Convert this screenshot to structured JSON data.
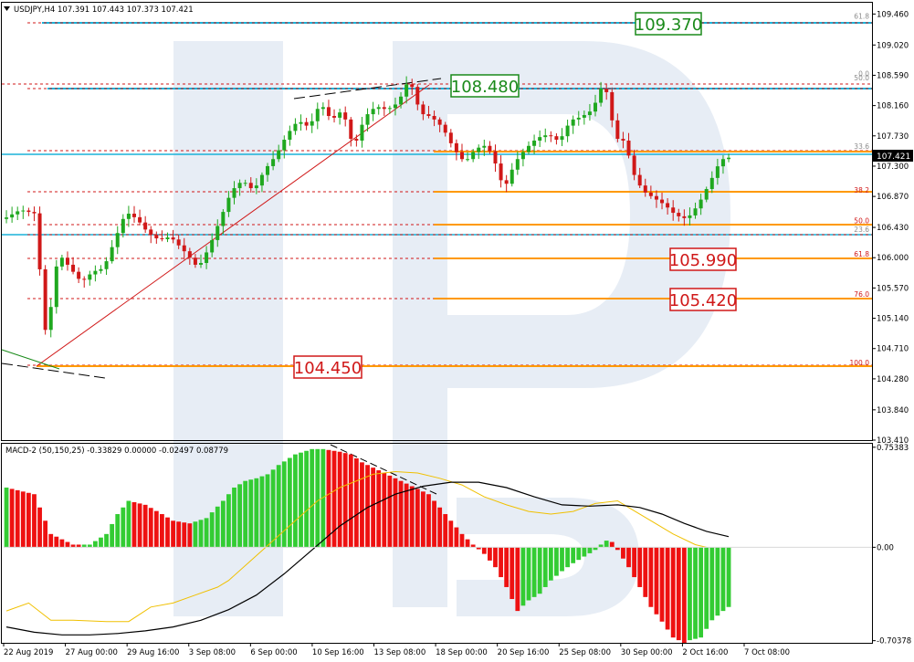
{
  "colors": {
    "frame": "#000000",
    "bull_candle": "#1fa81f",
    "bear_candle": "#d01818",
    "fib_dashed": "#d01818",
    "fib_solid": "#ff9900",
    "level_line": "#1ab2d8",
    "green_box": "#1a8a1a",
    "red_box": "#d01818",
    "trend_red": "#d01818",
    "trend_dash": "#000000",
    "macd_pos": "#33cc33",
    "macd_neg": "#ee1111",
    "signal_line": "#f0c000",
    "main_line": "#000000",
    "watermark": "#e7edf5"
  },
  "chart_data": [
    {
      "type": "candlestick",
      "title": "USDJPY,H4 107.391 107.443 107.373 107.421",
      "y_ticks": [
        "109.460",
        "109.020",
        "108.590",
        "108.160",
        "107.730",
        "107.300",
        "106.870",
        "106.430",
        "106.000",
        "105.570",
        "105.140",
        "104.710",
        "104.280",
        "103.840",
        "103.410"
      ],
      "ylim": [
        103.41,
        109.62
      ],
      "current_price": "107.421",
      "x_ticks": [
        "22 Aug 2019",
        "27 Aug 00:00",
        "29 Aug 16:00",
        "3 Sep 08:00",
        "6 Sep 00:00",
        "10 Sep 16:00",
        "13 Sep 08:00",
        "18 Sep 00:00",
        "20 Sep 16:00",
        "25 Sep 08:00",
        "30 Sep 00:00",
        "2 Oct 16:00",
        "7 Oct 08:00"
      ],
      "bar_count": 108,
      "highlighted_levels": [
        "109.370",
        "108.480",
        "105.990",
        "105.420",
        "104.450"
      ],
      "fib_levels_upper": [
        {
          "label": "61.8",
          "price": 109.37
        },
        {
          "label": "0.0",
          "price": 108.55
        },
        {
          "label": "50.0",
          "price": 108.49
        },
        {
          "label": "33.6",
          "price": 107.52
        },
        {
          "label": "23.6",
          "price": 106.34
        }
      ],
      "fib_levels_lower": [
        {
          "label": "38.2",
          "price": 106.9
        },
        {
          "label": "50.0",
          "price": 106.46
        },
        {
          "label": "61.8",
          "price": 105.99
        },
        {
          "label": "76.0",
          "price": 105.42
        },
        {
          "label": "100.0",
          "price": 104.45
        }
      ],
      "anchors": {
        "low": 104.45,
        "high": 108.55
      },
      "path_points": [
        [
          0,
          106.55
        ],
        [
          3,
          106.68
        ],
        [
          6,
          106.62
        ],
        [
          7,
          105.05
        ],
        [
          8,
          104.9
        ],
        [
          9,
          105.7
        ],
        [
          10,
          106.05
        ],
        [
          12,
          105.85
        ],
        [
          14,
          105.65
        ],
        [
          16,
          105.8
        ],
        [
          18,
          105.85
        ],
        [
          20,
          106.25
        ],
        [
          22,
          106.65
        ],
        [
          24,
          106.55
        ],
        [
          26,
          106.35
        ],
        [
          28,
          106.25
        ],
        [
          30,
          106.3
        ],
        [
          33,
          106.05
        ],
        [
          35,
          105.85
        ],
        [
          37,
          106.15
        ],
        [
          39,
          106.55
        ],
        [
          41,
          106.95
        ],
        [
          43,
          107.1
        ],
        [
          45,
          106.95
        ],
        [
          47,
          107.25
        ],
        [
          49,
          107.45
        ],
        [
          51,
          107.75
        ],
        [
          53,
          107.95
        ],
        [
          55,
          107.85
        ],
        [
          57,
          108.2
        ],
        [
          59,
          107.95
        ],
        [
          61,
          108.1
        ],
        [
          63,
          107.55
        ],
        [
          65,
          108.0
        ],
        [
          67,
          108.15
        ],
        [
          69,
          108.1
        ],
        [
          71,
          108.2
        ],
        [
          73,
          108.55
        ],
        [
          75,
          108.05
        ],
        [
          77,
          108.0
        ],
        [
          79,
          107.85
        ],
        [
          81,
          107.55
        ],
        [
          83,
          107.35
        ],
        [
          85,
          107.55
        ],
        [
          87,
          107.6
        ],
        [
          89,
          107.25
        ],
        [
          90,
          106.95
        ],
        [
          92,
          107.35
        ],
        [
          94,
          107.55
        ],
        [
          96,
          107.7
        ],
        [
          98,
          107.75
        ],
        [
          100,
          107.65
        ],
        [
          102,
          107.95
        ],
        [
          104,
          108.0
        ],
        [
          106,
          108.1
        ],
        [
          108,
          108.5
        ],
        [
          109,
          108.2
        ],
        [
          110,
          107.7
        ],
        [
          112,
          107.65
        ],
        [
          113,
          107.25
        ],
        [
          115,
          106.95
        ],
        [
          117,
          106.85
        ],
        [
          119,
          106.75
        ],
        [
          121,
          106.6
        ],
        [
          123,
          106.55
        ],
        [
          125,
          106.75
        ],
        [
          127,
          107.05
        ],
        [
          129,
          107.38
        ],
        [
          130,
          107.42
        ]
      ]
    },
    {
      "type": "histogram",
      "title": "MACD-2 (50,150,25) -0.33829 0.00000 -0.02497 0.08779",
      "y_ticks": [
        "0.75383",
        "0.00",
        "-0.70378"
      ],
      "ylim": [
        -0.72,
        0.78
      ],
      "series": [
        {
          "name": "histogram",
          "points": [
            [
              0,
              0.45
            ],
            [
              5,
              0.4
            ],
            [
              8,
              0.1
            ],
            [
              12,
              0.02
            ],
            [
              15,
              0.02
            ],
            [
              18,
              0.1
            ],
            [
              20,
              0.25
            ],
            [
              22,
              0.35
            ],
            [
              25,
              0.32
            ],
            [
              28,
              0.25
            ],
            [
              30,
              0.2
            ],
            [
              33,
              0.18
            ],
            [
              36,
              0.22
            ],
            [
              39,
              0.35
            ],
            [
              41,
              0.45
            ],
            [
              43,
              0.5
            ],
            [
              45,
              0.52
            ],
            [
              47,
              0.55
            ],
            [
              49,
              0.62
            ],
            [
              52,
              0.7
            ],
            [
              55,
              0.74
            ],
            [
              57,
              0.74
            ],
            [
              60,
              0.72
            ],
            [
              62,
              0.7
            ],
            [
              64,
              0.64
            ],
            [
              66,
              0.6
            ],
            [
              68,
              0.56
            ],
            [
              70,
              0.52
            ],
            [
              72,
              0.48
            ],
            [
              74,
              0.44
            ],
            [
              76,
              0.4
            ],
            [
              78,
              0.3
            ],
            [
              80,
              0.2
            ],
            [
              82,
              0.1
            ],
            [
              84,
              0.02
            ],
            [
              86,
              -0.05
            ],
            [
              88,
              -0.15
            ],
            [
              90,
              -0.3
            ],
            [
              92,
              -0.48
            ],
            [
              94,
              -0.4
            ],
            [
              96,
              -0.35
            ],
            [
              98,
              -0.25
            ],
            [
              100,
              -0.18
            ],
            [
              102,
              -0.12
            ],
            [
              104,
              -0.07
            ],
            [
              106,
              -0.02
            ],
            [
              107,
              0.02
            ],
            [
              108,
              0.05
            ],
            [
              109,
              0.04
            ],
            [
              110,
              -0.02
            ],
            [
              112,
              -0.15
            ],
            [
              114,
              -0.3
            ],
            [
              116,
              -0.45
            ],
            [
              118,
              -0.56
            ],
            [
              120,
              -0.68
            ],
            [
              122,
              -0.72
            ],
            [
              123,
              -0.7
            ],
            [
              125,
              -0.68
            ],
            [
              127,
              -0.55
            ],
            [
              129,
              -0.48
            ],
            [
              130,
              -0.45
            ]
          ]
        },
        {
          "name": "signal",
          "points": [
            [
              0,
              -0.48
            ],
            [
              4,
              -0.42
            ],
            [
              8,
              -0.55
            ],
            [
              12,
              -0.55
            ],
            [
              18,
              -0.56
            ],
            [
              22,
              -0.56
            ],
            [
              26,
              -0.45
            ],
            [
              30,
              -0.42
            ],
            [
              34,
              -0.36
            ],
            [
              38,
              -0.3
            ],
            [
              40,
              -0.25
            ],
            [
              44,
              -0.1
            ],
            [
              48,
              0.05
            ],
            [
              52,
              0.2
            ],
            [
              56,
              0.35
            ],
            [
              60,
              0.45
            ],
            [
              66,
              0.55
            ],
            [
              70,
              0.57
            ],
            [
              74,
              0.56
            ],
            [
              78,
              0.52
            ],
            [
              82,
              0.47
            ],
            [
              86,
              0.38
            ],
            [
              90,
              0.32
            ],
            [
              94,
              0.27
            ],
            [
              98,
              0.25
            ],
            [
              102,
              0.27
            ],
            [
              106,
              0.33
            ],
            [
              110,
              0.35
            ],
            [
              112,
              0.3
            ],
            [
              116,
              0.2
            ],
            [
              120,
              0.1
            ],
            [
              124,
              0.02
            ],
            [
              126,
              0.0
            ]
          ]
        },
        {
          "name": "main",
          "points": [
            [
              0,
              -0.6
            ],
            [
              5,
              -0.64
            ],
            [
              10,
              -0.66
            ],
            [
              15,
              -0.66
            ],
            [
              20,
              -0.65
            ],
            [
              25,
              -0.63
            ],
            [
              30,
              -0.6
            ],
            [
              35,
              -0.55
            ],
            [
              40,
              -0.47
            ],
            [
              45,
              -0.36
            ],
            [
              50,
              -0.2
            ],
            [
              55,
              -0.02
            ],
            [
              60,
              0.16
            ],
            [
              65,
              0.3
            ],
            [
              70,
              0.4
            ],
            [
              75,
              0.46
            ],
            [
              80,
              0.49
            ],
            [
              85,
              0.49
            ],
            [
              90,
              0.45
            ],
            [
              95,
              0.38
            ],
            [
              100,
              0.32
            ],
            [
              105,
              0.31
            ],
            [
              110,
              0.32
            ],
            [
              114,
              0.3
            ],
            [
              118,
              0.25
            ],
            [
              122,
              0.18
            ],
            [
              126,
              0.12
            ],
            [
              130,
              0.08
            ]
          ]
        }
      ]
    }
  ]
}
